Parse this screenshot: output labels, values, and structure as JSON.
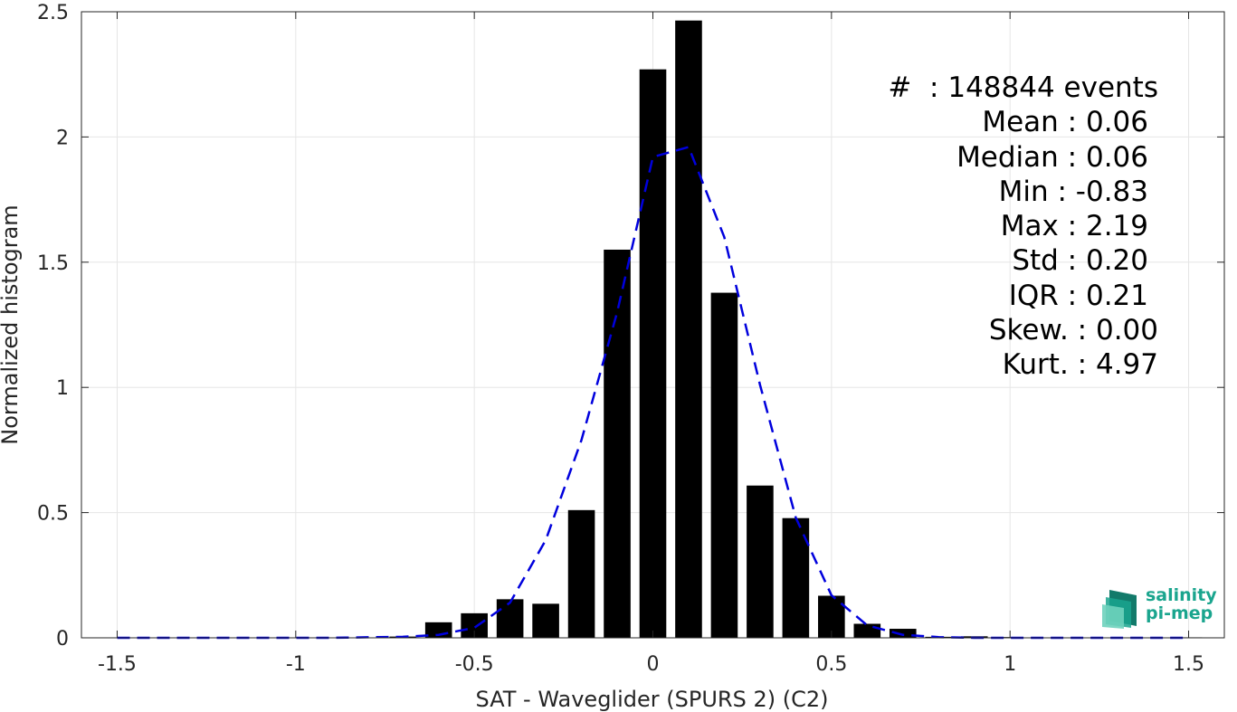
{
  "chart_data": {
    "type": "bar",
    "xlabel": "SAT - Waveglider (SPURS 2) (C2)",
    "ylabel": "Normalized histogram",
    "xlim": [
      -1.6,
      1.6
    ],
    "ylim": [
      0,
      2.5
    ],
    "xticks": [
      -1.5,
      -1,
      -0.5,
      0,
      0.5,
      1,
      1.5
    ],
    "xtick_labels": [
      "-1.5",
      "-1",
      "-0.5",
      "0",
      "0.5",
      "1",
      "1.5"
    ],
    "yticks": [
      0,
      0.5,
      1,
      1.5,
      2,
      2.5
    ],
    "ytick_labels": [
      "0",
      "0.5",
      "1",
      "1.5",
      "2",
      "2.5"
    ],
    "grid": true,
    "bar_width": 0.075,
    "bar_color": "#000000",
    "bars": [
      {
        "x": -0.7,
        "y": 0.005
      },
      {
        "x": -0.6,
        "y": 0.062
      },
      {
        "x": -0.5,
        "y": 0.098
      },
      {
        "x": -0.4,
        "y": 0.154
      },
      {
        "x": -0.3,
        "y": 0.136
      },
      {
        "x": -0.2,
        "y": 0.51
      },
      {
        "x": -0.1,
        "y": 1.55
      },
      {
        "x": 0.0,
        "y": 2.27
      },
      {
        "x": 0.1,
        "y": 2.465
      },
      {
        "x": 0.2,
        "y": 1.378
      },
      {
        "x": 0.3,
        "y": 0.608
      },
      {
        "x": 0.4,
        "y": 0.478
      },
      {
        "x": 0.5,
        "y": 0.168
      },
      {
        "x": 0.6,
        "y": 0.056
      },
      {
        "x": 0.7,
        "y": 0.036
      },
      {
        "x": 0.8,
        "y": 0.004
      },
      {
        "x": 0.9,
        "y": 0.006
      },
      {
        "x": 1.0,
        "y": 0.003
      },
      {
        "x": 1.5,
        "y": 0.002
      }
    ],
    "fit_line": {
      "color": "#0000dd",
      "style": "dashed",
      "points": [
        [
          -1.5,
          0.0
        ],
        [
          -1.3,
          0.0
        ],
        [
          -1.1,
          0.0
        ],
        [
          -0.9,
          0.0
        ],
        [
          -0.8,
          0.002
        ],
        [
          -0.7,
          0.004
        ],
        [
          -0.6,
          0.012
        ],
        [
          -0.5,
          0.04
        ],
        [
          -0.4,
          0.14
        ],
        [
          -0.3,
          0.39
        ],
        [
          -0.2,
          0.79
        ],
        [
          -0.1,
          1.3
        ],
        [
          0.0,
          1.92
        ],
        [
          0.1,
          1.96
        ],
        [
          0.2,
          1.6
        ],
        [
          0.3,
          1.01
        ],
        [
          0.4,
          0.48
        ],
        [
          0.5,
          0.17
        ],
        [
          0.6,
          0.05
        ],
        [
          0.7,
          0.012
        ],
        [
          0.8,
          0.003
        ],
        [
          0.9,
          0.0
        ],
        [
          1.1,
          0.0
        ],
        [
          1.3,
          0.0
        ],
        [
          1.5,
          0.0
        ]
      ]
    },
    "annotations": [
      "#  : 148844 events",
      "Mean : 0.06",
      "Median : 0.06",
      "Min : -0.83",
      "Max : 2.19",
      "Std : 0.20",
      "IQR : 0.21",
      "Skew. : 0.00",
      "Kurt. : 4.97"
    ]
  },
  "logo": {
    "line1": "salinity",
    "line2": "pi-mep",
    "color": "#1aa58e"
  }
}
